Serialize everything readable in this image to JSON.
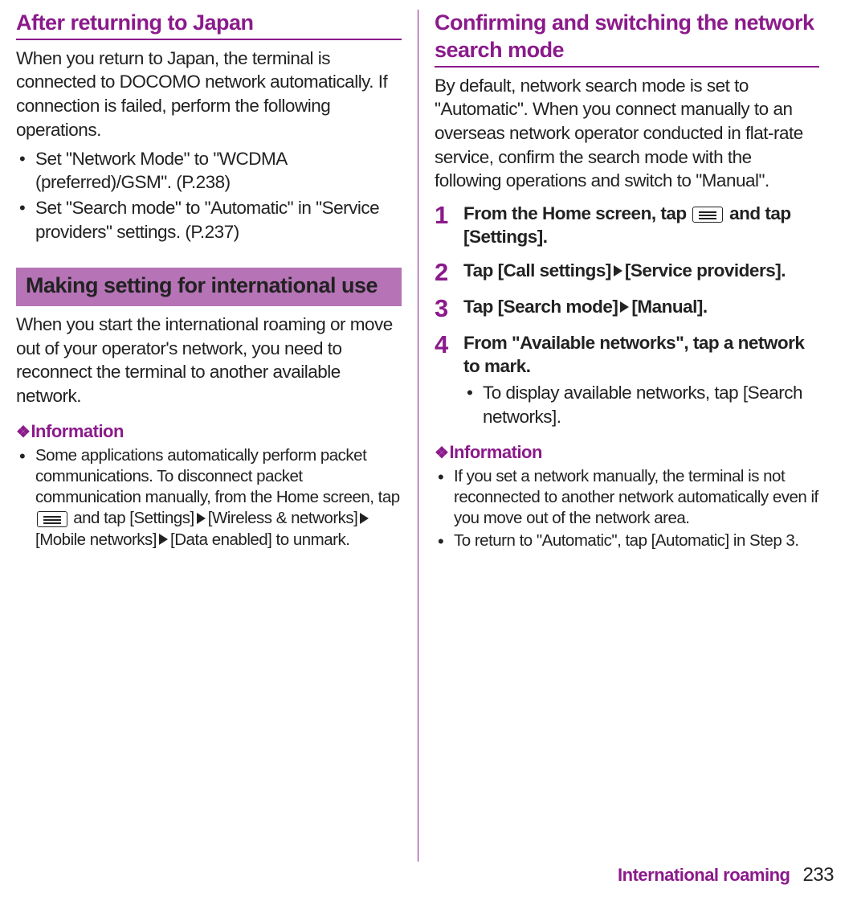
{
  "left": {
    "heading1": "After returning to Japan",
    "body1": "When you return to Japan, the terminal is connected to DOCOMO network automatically. If connection is failed, perform the following operations.",
    "bullets1": [
      "Set \"Network Mode\" to \"WCDMA (preferred)/GSM\". (P.238)",
      "Set \"Search mode\" to \"Automatic\" in \"Service providers\" settings. (P.237)"
    ],
    "boxHeading": "Making setting for international use",
    "body2": "When you start the international roaming or move out of your operator's network, you need to reconnect the terminal to another available network.",
    "infoHeading": "Information",
    "infoBullet_pre": "Some applications automatically perform packet communications. To disconnect packet communication manually, from the Home screen, tap ",
    "infoBullet_mid1": " and tap [Settings]",
    "infoBullet_mid2": "[Wireless & networks]",
    "infoBullet_mid3": "[Mobile networks]",
    "infoBullet_end": "[Data enabled] to unmark."
  },
  "right": {
    "heading1": "Confirming and switching the network search mode",
    "body1": "By default, network search mode is set to \"Automatic\". When you connect manually to an overseas network operator conducted in flat-rate service, confirm the search mode with the following operations and switch to \"Manual\".",
    "steps": {
      "s1_pre": "From the Home screen, tap ",
      "s1_post": " and tap [Settings].",
      "s2_a": "Tap [Call settings]",
      "s2_b": "[Service providers].",
      "s3_a": "Tap [Search mode]",
      "s3_b": "[Manual].",
      "s4": "From \"Available networks\", tap a network to mark.",
      "s4_sub": "To display available networks, tap [Search networks]."
    },
    "infoHeading": "Information",
    "infoBullets": [
      "If you set a network manually, the terminal is not reconnected to another network automatically even if you move out of the network area.",
      "To return to \"Automatic\", tap [Automatic] in Step 3."
    ]
  },
  "footer": {
    "title": "International roaming",
    "page": "233"
  }
}
